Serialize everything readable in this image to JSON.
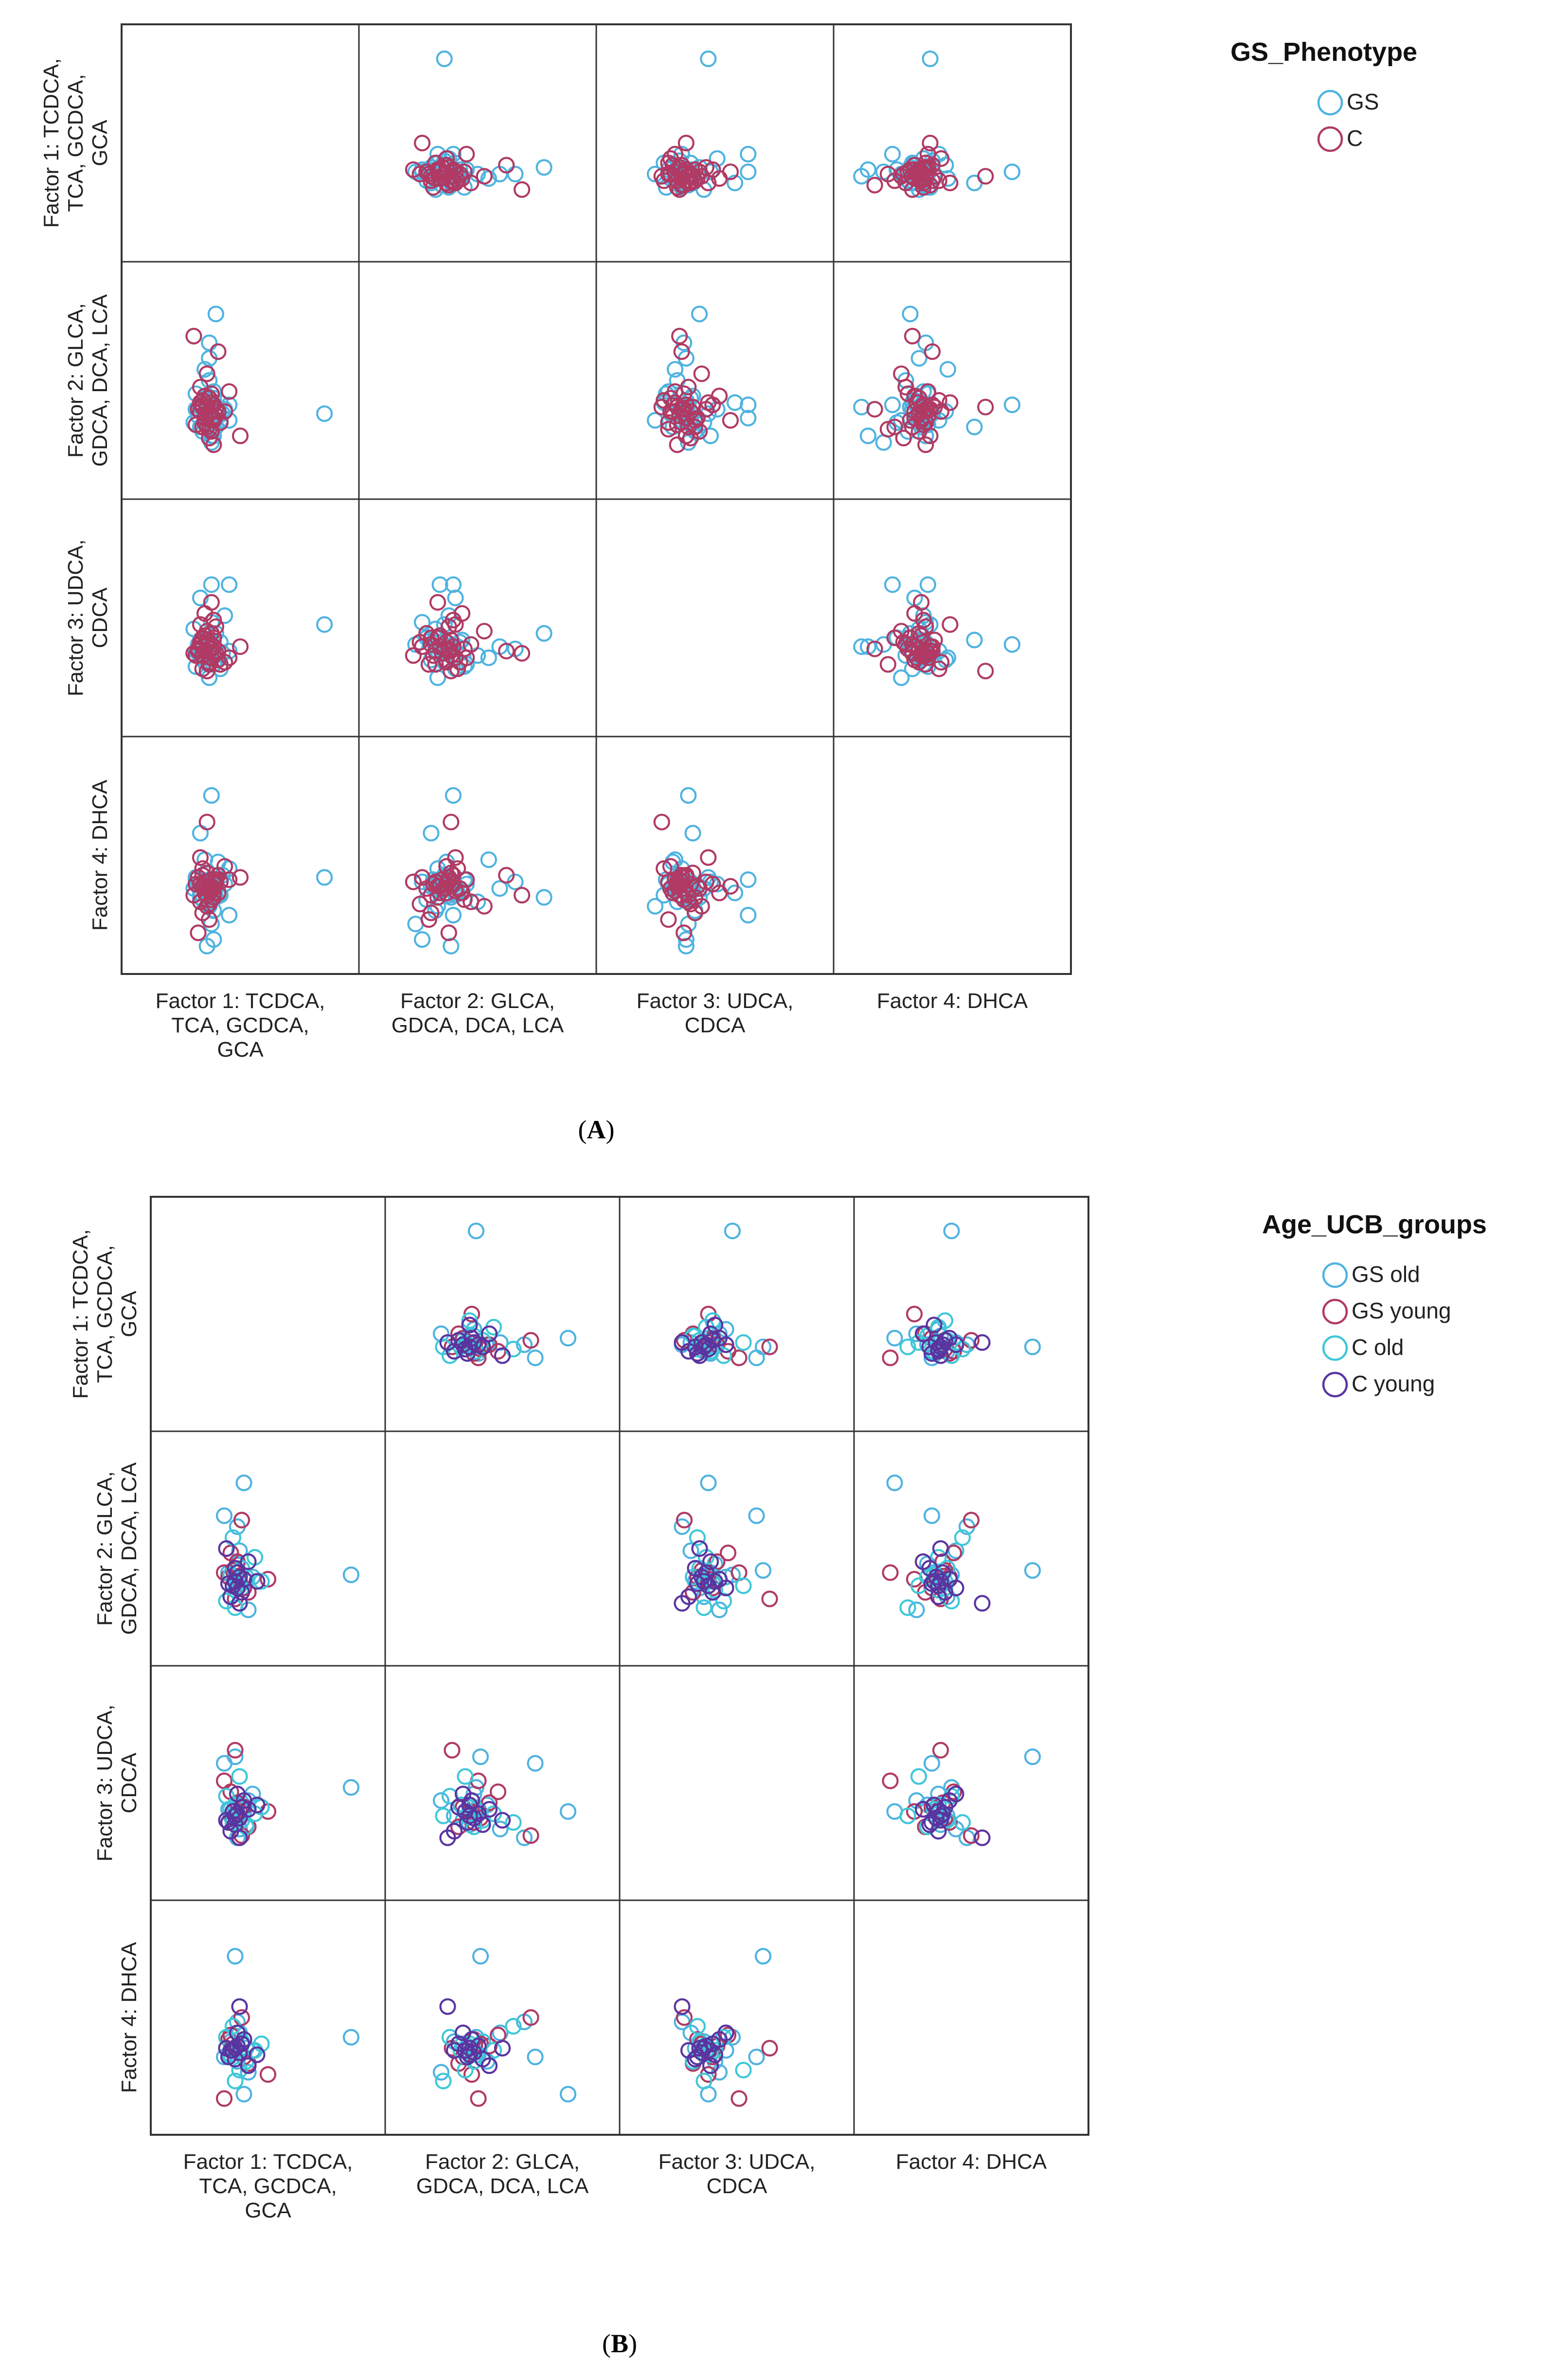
{
  "chart_data": [
    {
      "type": "scatter",
      "subtype": "scatter-matrix",
      "panel_label": "A",
      "panel_label_open": "(",
      "panel_label_close": ")",
      "variables": [
        {
          "axis_lines": [
            "Factor 1: TCDCA,",
            "TCA, GCDCA,",
            "GCA"
          ],
          "row_lines": [
            "Factor 1: TCDCA,",
            "TCA, GCDCA,",
            "GCA"
          ]
        },
        {
          "axis_lines": [
            "Factor 2: GLCA,",
            "GDCA, DCA, LCA"
          ],
          "row_lines": [
            "Factor 2: GLCA,",
            "GDCA, DCA, LCA"
          ]
        },
        {
          "axis_lines": [
            "Factor 3: UDCA,",
            "CDCA"
          ],
          "row_lines": [
            "Factor 3: UDCA,",
            "CDCA"
          ]
        },
        {
          "axis_lines": [
            "Factor 4: DHCA"
          ],
          "row_lines": [
            "Factor 4: DHCA"
          ]
        }
      ],
      "axis_range": [
        -3,
        6
      ],
      "legend": {
        "title": "GS_Phenotype",
        "placement": "top-right",
        "entries": [
          {
            "label": "GS",
            "color": "#4fb3e0"
          },
          {
            "label": "C",
            "color": "#b03a64"
          }
        ]
      },
      "series": [
        {
          "name": "GS",
          "color": "#4fb3e0",
          "points": [
            [
              0.0,
              0.1,
              -0.1,
              0.2
            ],
            [
              0.3,
              -0.2,
              0.1,
              -0.1
            ],
            [
              -0.2,
              0.4,
              -0.3,
              0.1
            ],
            [
              0.5,
              0.2,
              0.0,
              -0.3
            ],
            [
              -0.4,
              -0.1,
              0.3,
              0.2
            ],
            [
              0.1,
              -0.5,
              -0.2,
              0.4
            ],
            [
              0.2,
              0.6,
              0.2,
              -0.2
            ],
            [
              -0.1,
              0.0,
              -0.5,
              0.0
            ],
            [
              0.6,
              -0.3,
              0.4,
              0.3
            ],
            [
              -0.3,
              0.3,
              0.1,
              -0.4
            ],
            [
              0.4,
              -0.6,
              -0.4,
              0.1
            ],
            [
              -0.5,
              0.2,
              0.0,
              0.5
            ],
            [
              0.0,
              0.8,
              0.5,
              -0.1
            ],
            [
              0.7,
              0.0,
              -0.1,
              0.6
            ],
            [
              -0.2,
              -0.8,
              0.6,
              -0.5
            ],
            [
              0.3,
              1.0,
              -0.6,
              0.2
            ],
            [
              1.0,
              -0.3,
              0.0,
              0.9
            ],
            [
              -0.6,
              -0.4,
              1.0,
              0.0
            ],
            [
              0.1,
              1.5,
              -0.2,
              -0.6
            ],
            [
              0.2,
              -1.0,
              1.3,
              0.3
            ],
            [
              -0.3,
              0.5,
              2.4,
              -0.2
            ],
            [
              0.2,
              -0.2,
              3.0,
              0.4
            ],
            [
              1.0,
              0.4,
              3.0,
              -1.2
            ],
            [
              0.1,
              -0.3,
              -1.2,
              -0.8
            ],
            [
              5.3,
              0.0,
              1.2,
              0.5
            ],
            [
              0.4,
              4.5,
              0.8,
              -0.4
            ],
            [
              0.0,
              0.3,
              0.2,
              -2.6
            ],
            [
              0.2,
              0.4,
              0.3,
              4.2
            ],
            [
              0.5,
              0.1,
              -0.4,
              1.2
            ],
            [
              0.3,
              -0.4,
              0.6,
              -1.0
            ],
            [
              0.1,
              3.2,
              0.1,
              0.3
            ],
            [
              -0.1,
              2.0,
              -0.3,
              1.3
            ],
            [
              0.6,
              0.5,
              -0.8,
              -0.3
            ],
            [
              -0.3,
              -0.6,
              0.5,
              2.5
            ],
            [
              0.8,
              0.2,
              1.6,
              0.2
            ],
            [
              0.2,
              -1.3,
              0.3,
              -1.6
            ],
            [
              -0.5,
              0.9,
              -0.7,
              0.4
            ],
            [
              0.1,
              2.5,
              0.2,
              0.0
            ],
            [
              0.3,
              0.7,
              0.4,
              0.0
            ],
            [
              0.3,
              -1.0,
              0.2,
              -2.3
            ]
          ]
        },
        {
          "name": "C",
          "color": "#b03a64",
          "points": [
            [
              0.1,
              0.0,
              0.1,
              0.0
            ],
            [
              -0.2,
              0.3,
              -0.2,
              0.1
            ],
            [
              0.3,
              -0.2,
              0.2,
              -0.2
            ],
            [
              -0.1,
              -0.4,
              0.0,
              0.3
            ],
            [
              0.2,
              0.5,
              -0.3,
              -0.1
            ],
            [
              -0.3,
              0.1,
              0.4,
              0.2
            ],
            [
              0.4,
              -0.1,
              -0.1,
              0.4
            ],
            [
              0.0,
              -0.6,
              0.3,
              -0.3
            ],
            [
              -0.4,
              0.2,
              0.0,
              0.5
            ],
            [
              0.1,
              0.7,
              -0.5,
              0.0
            ],
            [
              0.3,
              -0.3,
              0.6,
              -0.4
            ],
            [
              -0.2,
              0.4,
              0.2,
              0.6
            ],
            [
              0.5,
              0.1,
              -0.4,
              -0.2
            ],
            [
              -0.1,
              -0.2,
              0.7,
              0.1
            ],
            [
              0.2,
              0.9,
              0.1,
              -0.5
            ],
            [
              -0.5,
              -0.5,
              -0.2,
              0.2
            ],
            [
              0.0,
              0.3,
              0.5,
              0.7
            ],
            [
              0.6,
              -0.4,
              -0.6,
              0.3
            ],
            [
              -0.3,
              1.2,
              0.3,
              -0.6
            ],
            [
              0.2,
              -0.8,
              0.8,
              0.0
            ],
            [
              0.4,
              0.2,
              1.1,
              0.3
            ],
            [
              -0.2,
              0.6,
              -0.8,
              0.9
            ],
            [
              0.1,
              -1.1,
              0.4,
              -0.7
            ],
            [
              0.3,
              0.4,
              1.4,
              0.2
            ],
            [
              -0.6,
              3.5,
              -0.1,
              -0.3
            ],
            [
              1.5,
              -1.0,
              0.2,
              0.5
            ],
            [
              -0.1,
              0.8,
              1.7,
              -0.2
            ],
            [
              0.0,
              0.3,
              -0.9,
              3.0
            ],
            [
              -0.4,
              0.2,
              0.1,
              -2.0
            ],
            [
              1.0,
              1.0,
              -0.3,
              0.4
            ],
            [
              0.2,
              -0.3,
              2.2,
              0.1
            ],
            [
              0.5,
              2.8,
              0.0,
              0.6
            ],
            [
              -0.2,
              -0.6,
              0.6,
              -1.1
            ],
            [
              0.8,
              0.1,
              -0.5,
              1.0
            ],
            [
              0.0,
              1.8,
              0.9,
              -0.8
            ],
            [
              0.3,
              -1.4,
              -0.2,
              0.3
            ],
            [
              -0.3,
              0.5,
              1.2,
              1.4
            ],
            [
              0.1,
              -0.7,
              -0.6,
              -1.4
            ]
          ]
        }
      ]
    },
    {
      "type": "scatter",
      "subtype": "scatter-matrix",
      "panel_label": "B",
      "panel_label_open": "(",
      "panel_label_close": ")",
      "variables": [
        {
          "axis_lines": [
            "Factor 1: TCDCA,",
            "TCA, GCDCA,",
            "GCA"
          ],
          "row_lines": [
            "Factor 1: TCDCA,",
            "TCA, GCDCA,",
            "GCA"
          ]
        },
        {
          "axis_lines": [
            "Factor 2: GLCA,",
            "GDCA, DCA, LCA"
          ],
          "row_lines": [
            "Factor 2: GLCA,",
            "GDCA, DCA, LCA"
          ]
        },
        {
          "axis_lines": [
            "Factor 3: UDCA,",
            "CDCA"
          ],
          "row_lines": [
            "Factor 3: UDCA,",
            "CDCA"
          ]
        },
        {
          "axis_lines": [
            "Factor 4: DHCA"
          ],
          "row_lines": [
            "Factor 4: DHCA"
          ]
        }
      ],
      "axis_range": [
        -3,
        6
      ],
      "legend": {
        "title": "Age_UCB_groups",
        "placement": "top-right",
        "entries": [
          {
            "label": "GS old",
            "color": "#4fb3e0"
          },
          {
            "label": "GS young",
            "color": "#b03a64"
          },
          {
            "label": "C old",
            "color": "#3ec8d8"
          },
          {
            "label": "C young",
            "color": "#5a34a0"
          }
        ]
      },
      "series": [
        {
          "name": "GS old",
          "color": "#4fb3e0",
          "points": [
            [
              0.0,
              0.1,
              0.1,
              0.0
            ],
            [
              0.3,
              -0.3,
              -0.2,
              0.3
            ],
            [
              -0.3,
              0.4,
              0.3,
              -0.2
            ],
            [
              0.5,
              0.0,
              -0.4,
              0.1
            ],
            [
              0.1,
              0.8,
              0.5,
              -0.5
            ],
            [
              -0.2,
              -0.7,
              0.0,
              0.4
            ],
            [
              0.8,
              0.2,
              1.0,
              0.0
            ],
            [
              0.2,
              1.4,
              -0.6,
              0.8
            ],
            [
              -0.5,
              3.0,
              2.4,
              -0.3
            ],
            [
              5.3,
              0.3,
              1.3,
              0.6
            ],
            [
              0.4,
              4.5,
              0.2,
              -2.0
            ],
            [
              0.1,
              2.5,
              -1.0,
              1.3
            ],
            [
              0.6,
              -1.3,
              0.7,
              -1.0
            ],
            [
              0.0,
              0.5,
              2.7,
              4.3
            ]
          ]
        },
        {
          "name": "GS young",
          "color": "#b03a64",
          "points": [
            [
              0.2,
              0.0,
              0.2,
              -0.1
            ],
            [
              -0.1,
              0.5,
              -0.1,
              0.3
            ],
            [
              0.4,
              -0.3,
              0.4,
              -0.3
            ],
            [
              -0.3,
              0.2,
              -0.3,
              0.5
            ],
            [
              0.1,
              0.9,
              0.6,
              0.2
            ],
            [
              0.6,
              -0.5,
              -0.5,
              -0.6
            ],
            [
              -0.2,
              1.3,
              1.1,
              0.7
            ],
            [
              1.5,
              0.1,
              0.2,
              -1.1
            ],
            [
              0.0,
              -0.8,
              3.0,
              0.1
            ],
            [
              0.3,
              2.8,
              -0.9,
              1.5
            ],
            [
              -0.5,
              0.4,
              1.6,
              -2.2
            ]
          ]
        },
        {
          "name": "C old",
          "color": "#3ec8d8",
          "points": [
            [
              0.1,
              -0.1,
              0.0,
              0.2
            ],
            [
              -0.2,
              0.3,
              0.3,
              -0.2
            ],
            [
              0.3,
              0.6,
              -0.2,
              0.4
            ],
            [
              0.0,
              -0.4,
              0.5,
              0.0
            ],
            [
              0.5,
              0.2,
              -0.5,
              -0.5
            ],
            [
              -0.4,
              -0.9,
              0.9,
              0.6
            ],
            [
              0.9,
              1.1,
              0.1,
              0.0
            ],
            [
              0.2,
              -0.2,
              1.8,
              -0.9
            ],
            [
              -0.1,
              2.0,
              -0.3,
              1.1
            ],
            [
              1.2,
              0.0,
              0.4,
              0.3
            ],
            [
              0.0,
              -1.2,
              0.0,
              -1.4
            ]
          ]
        },
        {
          "name": "C young",
          "color": "#5a34a0",
          "points": [
            [
              0.0,
              0.0,
              0.0,
              0.1
            ],
            [
              0.2,
              0.2,
              -0.1,
              -0.1
            ],
            [
              -0.1,
              -0.2,
              0.2,
              0.0
            ],
            [
              0.1,
              0.4,
              0.1,
              0.2
            ],
            [
              -0.3,
              -0.1,
              -0.3,
              -0.3
            ],
            [
              0.3,
              -0.5,
              0.4,
              0.3
            ],
            [
              0.0,
              0.6,
              -0.4,
              -0.4
            ],
            [
              0.4,
              0.1,
              0.7,
              0.5
            ],
            [
              -0.2,
              -0.7,
              -0.7,
              0.0
            ],
            [
              0.6,
              0.9,
              0.3,
              -0.7
            ],
            [
              0.1,
              -0.3,
              1.0,
              0.8
            ],
            [
              -0.4,
              1.5,
              -0.2,
              0.1
            ],
            [
              1.0,
              0.0,
              0.5,
              -0.2
            ],
            [
              0.2,
              -1.0,
              -1.0,
              2.0
            ]
          ]
        }
      ]
    }
  ]
}
